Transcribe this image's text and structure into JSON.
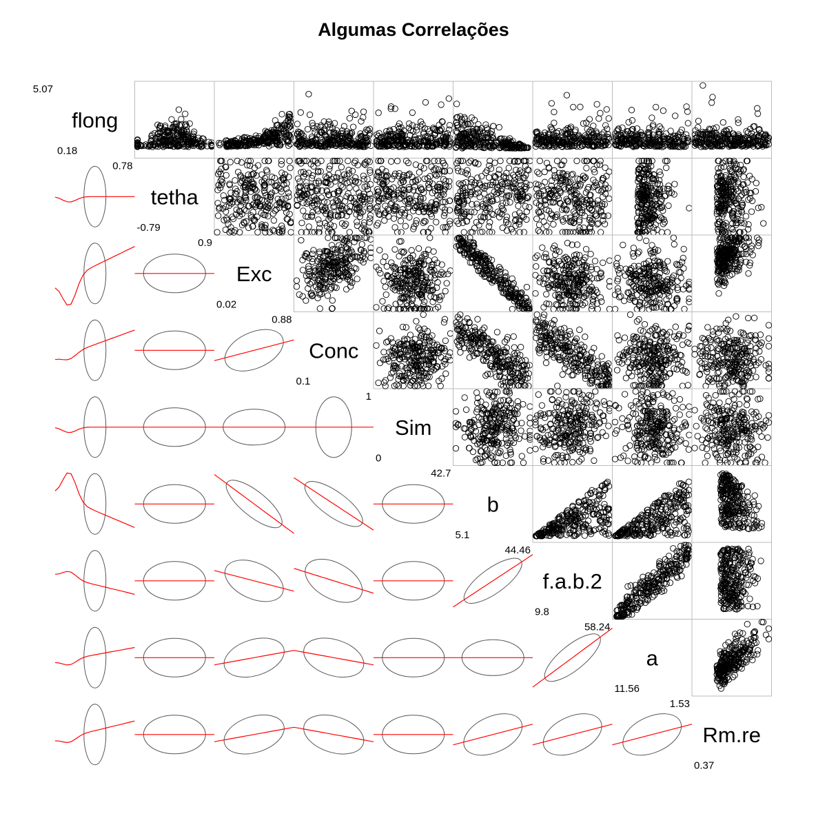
{
  "chart_data": {
    "type": "scatter",
    "title": "Algumas Correlações",
    "layout": "scatterplot-matrix",
    "upper_panels": "scatter",
    "lower_panels": "correlation-ellipse-with-loess",
    "colors": {
      "points": "#000000",
      "loess": "#ff0000",
      "ellipse": "#555555",
      "panel_border": "#bbbbbb"
    },
    "variables": [
      {
        "name": "flong",
        "max": "5.07",
        "min": "0.18"
      },
      {
        "name": "tetha",
        "max": "0.78",
        "min": "-0.79"
      },
      {
        "name": "Exc",
        "max": "0.9",
        "min": "0.02"
      },
      {
        "name": "Conc",
        "max": "0.88",
        "min": "0.1"
      },
      {
        "name": "Sim",
        "max": "1",
        "min": "0"
      },
      {
        "name": "b",
        "max": "42.7",
        "min": "5.1"
      },
      {
        "name": "f.a.b.2",
        "max": "44.46",
        "min": "9.8"
      },
      {
        "name": "a",
        "max": "58.24",
        "min": "11.56"
      },
      {
        "name": "Rm.re",
        "max": "1.53",
        "min": "0.37"
      }
    ]
  }
}
